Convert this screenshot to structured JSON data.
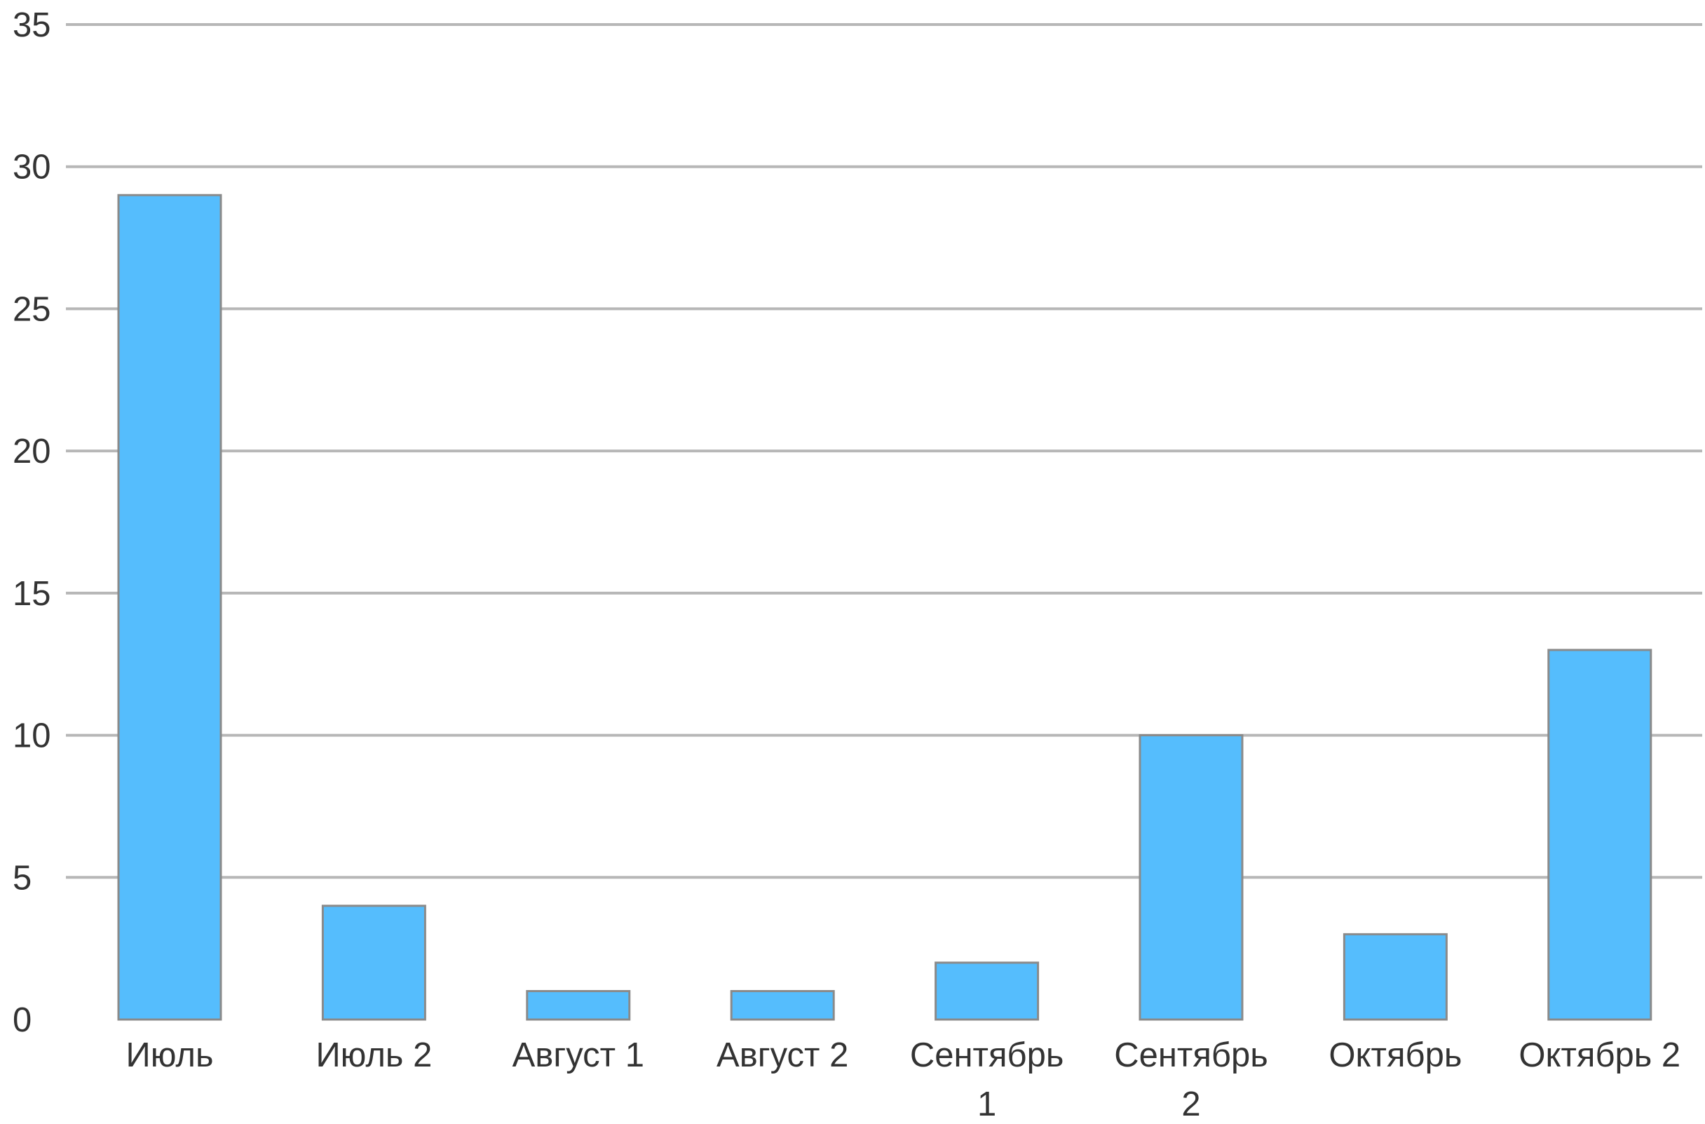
{
  "chart_data": {
    "type": "bar",
    "title": "",
    "xlabel": "",
    "ylabel": "",
    "categories": [
      [
        "Июль"
      ],
      [
        "Июль 2"
      ],
      [
        "Август 1"
      ],
      [
        "Август 2"
      ],
      [
        "Сентябрь",
        "1"
      ],
      [
        "Сентябрь",
        "2"
      ],
      [
        "Октябрь"
      ],
      [
        "Октябрь 2"
      ]
    ],
    "values": [
      29,
      4,
      1,
      1,
      2,
      10,
      3,
      13
    ],
    "ylim": [
      0,
      35
    ],
    "yticks": [
      "0",
      "5",
      "10",
      "15",
      "20",
      "25",
      "30",
      "35"
    ],
    "grid": true,
    "legend": "none",
    "colors": {
      "bar": "#55bdfd",
      "bar_border": "#8a8a8a",
      "grid": "#b7b7b7",
      "text": "#333333"
    }
  }
}
